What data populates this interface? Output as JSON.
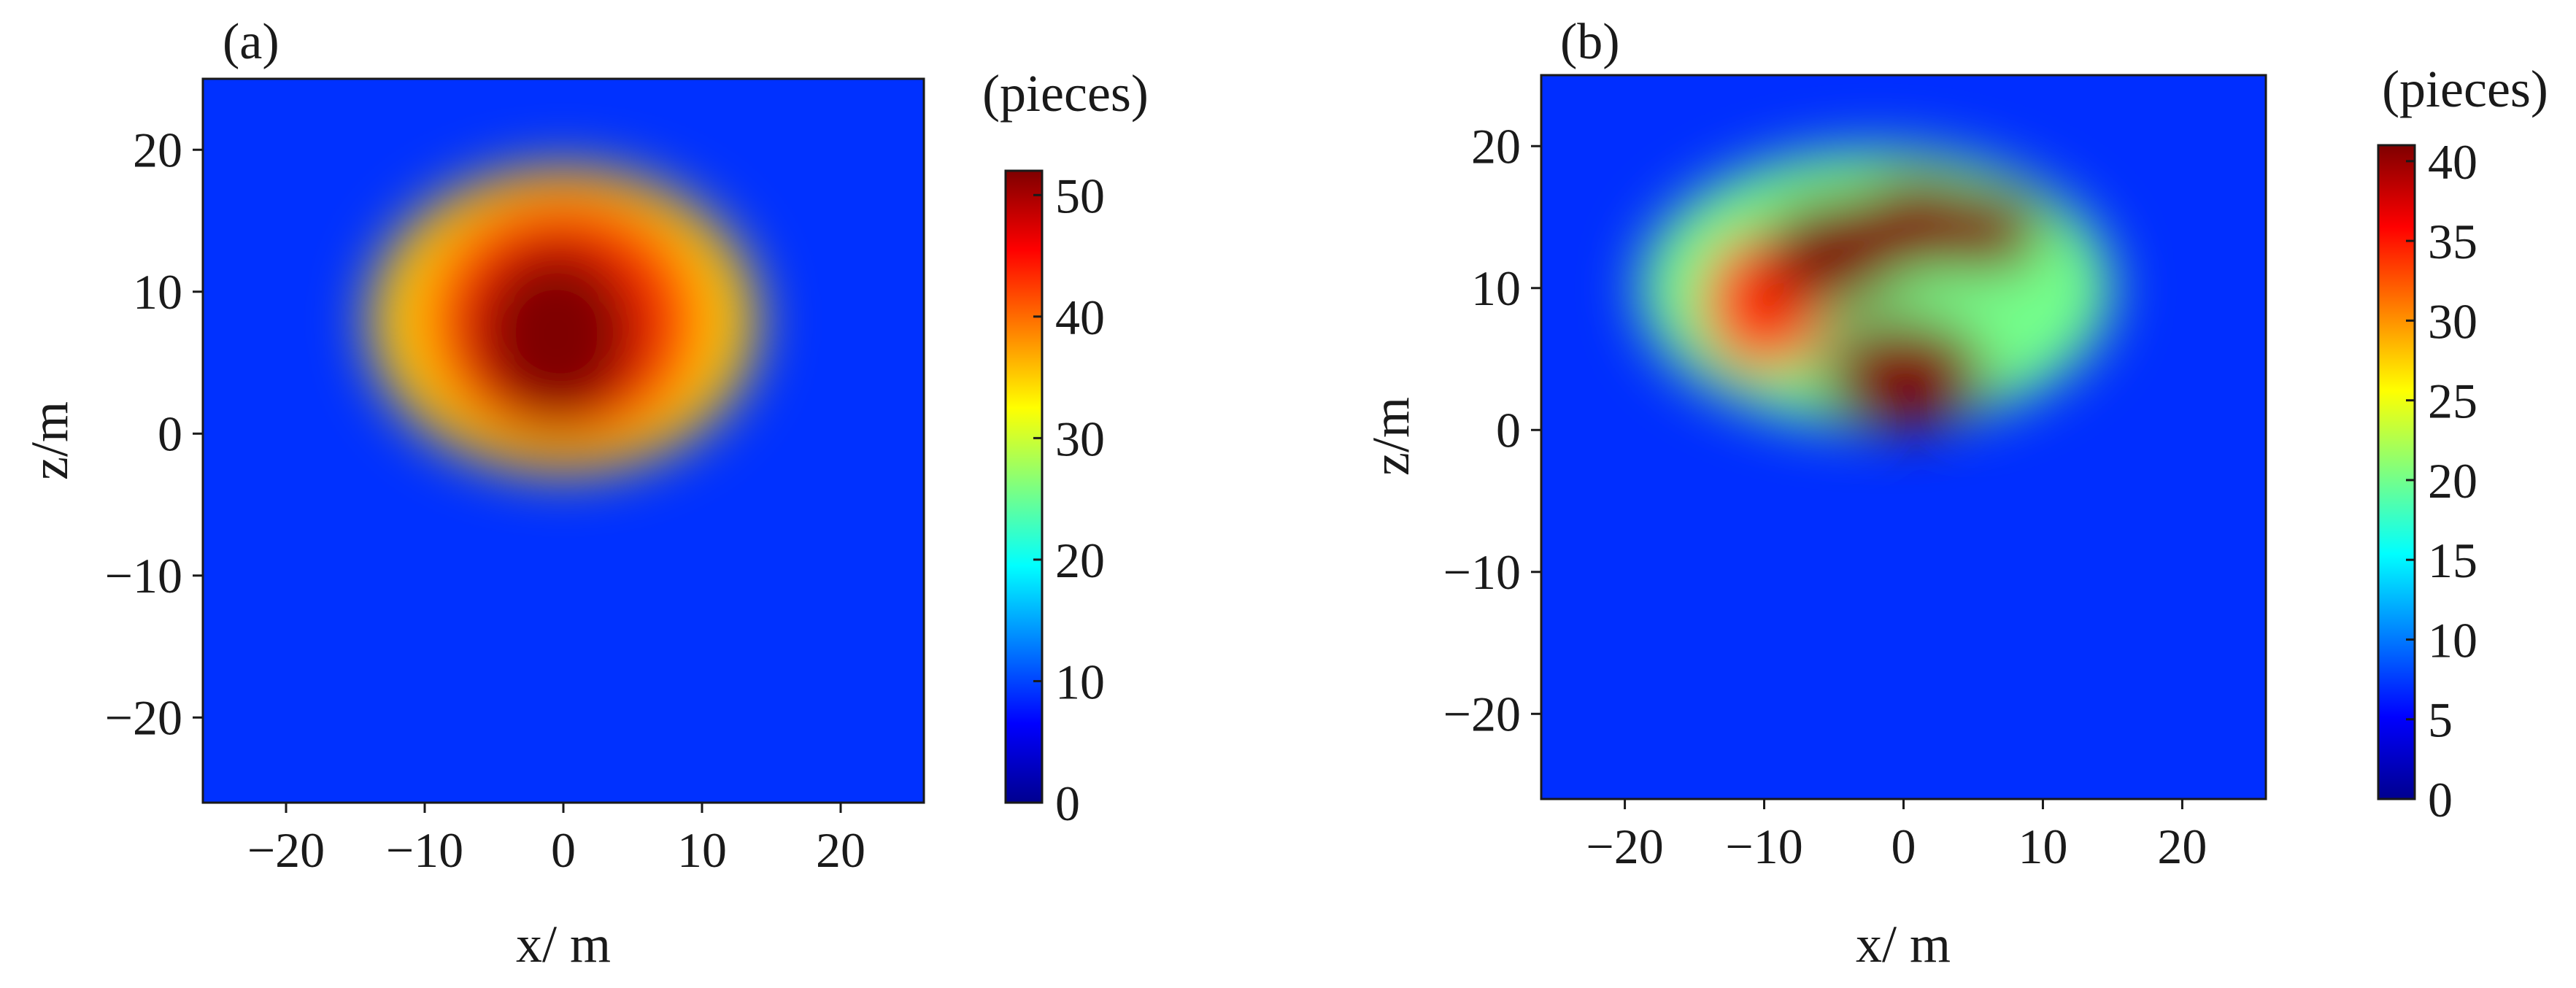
{
  "colormap": [
    "#00008f",
    "#0000ff",
    "#007fff",
    "#00ffff",
    "#7fff7f",
    "#ffff00",
    "#ff7f00",
    "#ff0000",
    "#7f0000"
  ],
  "chart_data": [
    {
      "type": "heatmap",
      "panel_label": "(a)",
      "xlabel": "x/ m",
      "ylabel": "z/m",
      "xlim": [
        -26,
        26
      ],
      "ylim": [
        -26,
        25
      ],
      "xticks": [
        -20,
        -10,
        0,
        10,
        20
      ],
      "yticks": [
        -20,
        -10,
        0,
        10,
        20
      ],
      "colorbar": {
        "title": "(pieces)",
        "min": 0,
        "max": 52,
        "ticks": [
          0,
          10,
          20,
          30,
          40,
          50
        ]
      },
      "background_value": 9,
      "blobs": [
        {
          "x": 0,
          "z": 8,
          "rx": 14,
          "rz": 11,
          "peak": 26
        },
        {
          "x": 0,
          "z": 8,
          "rx": 10,
          "rz": 9,
          "peak": 8
        },
        {
          "x": -0.5,
          "z": 7,
          "rx": 6,
          "rz": 6.5,
          "peak": 9
        }
      ]
    },
    {
      "type": "heatmap",
      "panel_label": "(b)",
      "xlabel": "x/ m",
      "ylabel": "z/m",
      "xlim": [
        -26,
        26
      ],
      "ylim": [
        -26,
        25
      ],
      "xticks": [
        -20,
        -10,
        0,
        10,
        20
      ],
      "yticks": [
        -20,
        -10,
        0,
        10,
        20
      ],
      "colorbar": {
        "title": "(pieces)",
        "min": 0,
        "max": 41,
        "ticks": [
          0,
          5,
          10,
          15,
          20,
          25,
          30,
          35,
          40
        ]
      },
      "background_value": 7,
      "blobs": [
        {
          "x": -2,
          "z": 10,
          "rx": 17,
          "rz": 10,
          "peak": 13
        },
        {
          "x": -10,
          "z": 9,
          "rx": 4.5,
          "rz": 5,
          "peak": 14
        },
        {
          "x": -5,
          "z": 12.5,
          "rx": 5,
          "rz": 4,
          "peak": 16
        },
        {
          "x": 1,
          "z": 14.5,
          "rx": 5,
          "rz": 3.5,
          "peak": 15
        },
        {
          "x": 6,
          "z": 14,
          "rx": 4,
          "rz": 3,
          "peak": 10
        },
        {
          "x": 0,
          "z": 4,
          "rx": 6,
          "rz": 4,
          "peak": 6
        }
      ]
    }
  ]
}
